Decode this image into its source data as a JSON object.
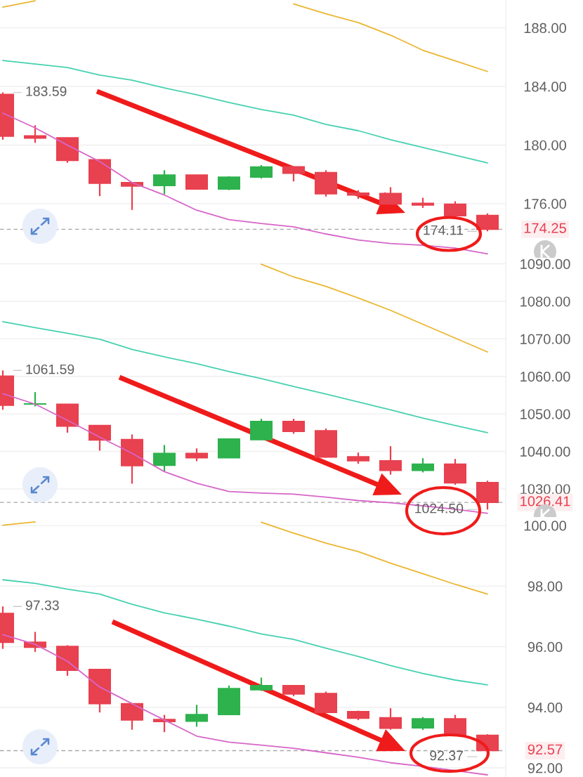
{
  "chart_data": [
    {
      "type": "candlestick",
      "categories": [
        null,
        null,
        null,
        null,
        null,
        null,
        null,
        null,
        null,
        null,
        null,
        null,
        null,
        null,
        null,
        null
      ],
      "ohlc": [
        [
          183.46,
          183.59,
          180.36,
          180.6
        ],
        [
          180.63,
          181.35,
          180.15,
          180.47
        ],
        [
          180.5,
          180.5,
          178.79,
          178.94
        ],
        [
          179.0,
          179.0,
          176.51,
          177.39
        ],
        [
          177.44,
          177.44,
          175.57,
          177.2
        ],
        [
          177.23,
          178.28,
          176.64,
          177.95
        ],
        [
          177.95,
          177.95,
          176.99,
          176.99
        ],
        [
          176.99,
          177.87,
          176.92,
          177.81
        ],
        [
          177.81,
          178.63,
          177.71,
          178.51
        ],
        [
          178.52,
          178.52,
          177.52,
          178.07
        ],
        [
          178.12,
          178.28,
          176.48,
          176.67
        ],
        [
          176.72,
          176.92,
          176.32,
          176.59
        ],
        [
          176.7,
          177.12,
          175.95,
          175.97
        ],
        [
          176.03,
          176.4,
          175.71,
          175.9
        ],
        [
          175.97,
          176.16,
          175.04,
          175.17
        ],
        [
          175.2,
          175.33,
          174.11,
          174.25
        ]
      ],
      "colors": [
        "#e8414f",
        "#e8414f",
        "#e8414f",
        "#e8414f",
        "#e8414f",
        "#2db24d",
        "#e8414f",
        "#2db24d",
        "#2db24d",
        "#e8414f",
        "#e8414f",
        "#e8414f",
        "#e8414f",
        "#e8414f",
        "#e8414f",
        "#e8414f"
      ],
      "series": [
        {
          "type": "line",
          "color": "#d766c8",
          "values": [
            182.18,
            181.17,
            179.99,
            178.87,
            177.44,
            176.59,
            175.55,
            174.91,
            174.64,
            174.42,
            173.93,
            173.52,
            173.28,
            173.16,
            172.97,
            172.57
          ]
        },
        {
          "type": "line",
          "color": "#47d1b0",
          "values": [
            185.77,
            185.53,
            185.29,
            184.77,
            184.43,
            183.9,
            183.43,
            182.9,
            182.42,
            182.04,
            181.41,
            180.98,
            180.36,
            179.83,
            179.31,
            178.78
          ]
        },
        {
          "type": "line",
          "color": "#ebb630",
          "values": [
            189.41,
            189.85,
            null,
            null,
            null,
            null,
            null,
            null,
            null,
            189.63,
            188.96,
            188.36,
            187.5,
            186.47,
            185.75,
            185.02
          ]
        }
      ],
      "ylim": [
        172.3,
        189.9
      ],
      "yticks": [
        {
          "value": 176,
          "label": "176.00"
        },
        {
          "value": 180,
          "label": "180.00"
        },
        {
          "value": 184,
          "label": "184.00"
        },
        {
          "value": 188,
          "label": "188.00"
        }
      ],
      "grid": "y",
      "tick_labels": "y",
      "ref_lines": [
        {
          "axis": "y",
          "value": 174.25,
          "label": "174.25",
          "color": "#a6a6a6",
          "line_style": "dashed"
        }
      ],
      "annotations": [
        "183.59",
        "174.11"
      ]
    },
    {
      "type": "candlestick",
      "categories": [
        null,
        null,
        null,
        null,
        null,
        null,
        null,
        null,
        null,
        null,
        null,
        null,
        null,
        null,
        null,
        null
      ],
      "ohlc": [
        [
          1060.1,
          1061.59,
          1051.1,
          1052.3
        ],
        [
          1052.6,
          1055.8,
          1052.0,
          1052.7
        ],
        [
          1052.6,
          1052.6,
          1045.0,
          1046.7
        ],
        [
          1046.9,
          1046.9,
          1040.2,
          1043.0
        ],
        [
          1043.2,
          1044.5,
          1031.4,
          1036.2
        ],
        [
          1036.3,
          1041.7,
          1034.7,
          1039.5
        ],
        [
          1039.5,
          1040.8,
          1037.4,
          1038.3
        ],
        [
          1038.3,
          1043.5,
          1038.3,
          1043.3
        ],
        [
          1043.1,
          1048.7,
          1043.1,
          1048.0
        ],
        [
          1048.0,
          1048.7,
          1044.7,
          1045.3
        ],
        [
          1045.5,
          1046.1,
          1038.3,
          1038.5
        ],
        [
          1038.6,
          1039.7,
          1036.7,
          1037.5
        ],
        [
          1037.5,
          1041.4,
          1033.8,
          1034.9
        ],
        [
          1034.9,
          1038.2,
          1034.4,
          1036.6
        ],
        [
          1036.6,
          1038.0,
          1031.1,
          1031.6
        ],
        [
          1031.7,
          1032.2,
          1024.5,
          1026.41
        ]
      ],
      "colors": [
        "#e8414f",
        "#2db24d",
        "#e8414f",
        "#e8414f",
        "#e8414f",
        "#2db24d",
        "#e8414f",
        "#2db24d",
        "#2db24d",
        "#e8414f",
        "#e8414f",
        "#e8414f",
        "#e8414f",
        "#2db24d",
        "#e8414f",
        "#e8414f"
      ],
      "series": [
        {
          "type": "line",
          "color": "#d766c8",
          "values": [
            1055.4,
            1052.6,
            1048.3,
            1043.8,
            1039.5,
            1034.6,
            1031.5,
            1029.3,
            1028.9,
            1028.6,
            1027.8,
            1026.9,
            1026.3,
            1025.5,
            1024.6,
            1023.5
          ]
        },
        {
          "type": "line",
          "color": "#47d1b0",
          "values": [
            1074.6,
            1073.0,
            1071.5,
            1069.9,
            1067.2,
            1065.2,
            1063.4,
            1061.3,
            1059.4,
            1057.3,
            1055.3,
            1053.2,
            1051.1,
            1048.9,
            1046.9,
            1045.0
          ]
        },
        {
          "type": "line",
          "color": "#ebb630",
          "values": [
            null,
            null,
            null,
            null,
            null,
            null,
            null,
            null,
            1089.9,
            1086.5,
            1084.0,
            1080.9,
            1077.6,
            1073.9,
            1070.2,
            1066.5
          ]
        }
      ],
      "ylim": [
        1022.5,
        1091.6
      ],
      "yticks": [
        {
          "value": 1030,
          "label": "1030.00"
        },
        {
          "value": 1040,
          "label": "1040.00"
        },
        {
          "value": 1050,
          "label": "1050.00"
        },
        {
          "value": 1060,
          "label": "1060.00"
        },
        {
          "value": 1070,
          "label": "1070.00"
        },
        {
          "value": 1080,
          "label": "1080.00"
        },
        {
          "value": 1090,
          "label": "1090.00"
        }
      ],
      "grid": "y",
      "tick_labels": "y",
      "ref_lines": [
        {
          "axis": "y",
          "value": 1026.41,
          "label": "1026.41",
          "color": "#a6a6a6",
          "line_style": "dashed"
        }
      ],
      "annotations": [
        "1061.59",
        "1024.50"
      ]
    },
    {
      "type": "candlestick",
      "categories": [
        null,
        null,
        null,
        null,
        null,
        null,
        null,
        null,
        null,
        null,
        null,
        null,
        null,
        null,
        null,
        null
      ],
      "ohlc": [
        [
          97.1,
          97.33,
          95.93,
          96.14
        ],
        [
          96.15,
          96.49,
          95.83,
          95.98
        ],
        [
          96.01,
          96.05,
          95.04,
          95.22
        ],
        [
          95.25,
          95.25,
          93.83,
          94.12
        ],
        [
          94.12,
          94.12,
          93.26,
          93.58
        ],
        [
          93.6,
          93.75,
          93.18,
          93.53
        ],
        [
          93.54,
          94.08,
          93.36,
          93.76
        ],
        [
          93.76,
          94.72,
          93.76,
          94.62
        ],
        [
          94.58,
          94.98,
          94.54,
          94.72
        ],
        [
          94.72,
          94.72,
          94.37,
          94.44
        ],
        [
          94.46,
          94.52,
          93.83,
          93.83
        ],
        [
          93.86,
          93.89,
          93.58,
          93.64
        ],
        [
          93.66,
          93.97,
          93.26,
          93.31
        ],
        [
          93.32,
          93.68,
          93.25,
          93.62
        ],
        [
          93.62,
          93.75,
          93.05,
          93.08
        ],
        [
          93.08,
          93.11,
          92.37,
          92.57
        ]
      ],
      "colors": [
        "#e8414f",
        "#e8414f",
        "#e8414f",
        "#e8414f",
        "#e8414f",
        "#e8414f",
        "#2db24d",
        "#2db24d",
        "#2db24d",
        "#e8414f",
        "#e8414f",
        "#e8414f",
        "#e8414f",
        "#2db24d",
        "#e8414f",
        "#e8414f"
      ],
      "series": [
        {
          "type": "line",
          "color": "#d766c8",
          "values": [
            96.4,
            96.08,
            95.52,
            94.67,
            94.12,
            93.58,
            93.05,
            92.85,
            92.75,
            92.65,
            92.5,
            92.35,
            92.17,
            92.05,
            91.91,
            91.77
          ]
        },
        {
          "type": "line",
          "color": "#47d1b0",
          "values": [
            98.21,
            98.09,
            97.9,
            97.74,
            97.4,
            97.12,
            96.91,
            96.68,
            96.42,
            96.24,
            95.95,
            95.68,
            95.38,
            95.12,
            94.9,
            94.74
          ]
        },
        {
          "type": "line",
          "color": "#ebb630",
          "values": [
            100.01,
            100.12,
            null,
            null,
            null,
            null,
            null,
            null,
            100.11,
            99.75,
            99.42,
            99.14,
            98.76,
            98.41,
            98.06,
            97.74
          ]
        }
      ],
      "ylim": [
        91.7,
        100.28
      ],
      "yticks": [
        {
          "value": 92,
          "label": "92.00"
        },
        {
          "value": 94,
          "label": "94.00"
        },
        {
          "value": 96,
          "label": "96.00"
        },
        {
          "value": 98,
          "label": "98.00"
        },
        {
          "value": 100,
          "label": "100.00"
        }
      ],
      "grid": "y",
      "tick_labels": "y",
      "ref_lines": [
        {
          "axis": "y",
          "value": 92.57,
          "label": "92.57",
          "color": "#a6a6a6",
          "line_style": "dashed"
        }
      ],
      "annotations": [
        "97.33",
        "92.37"
      ]
    }
  ]
}
